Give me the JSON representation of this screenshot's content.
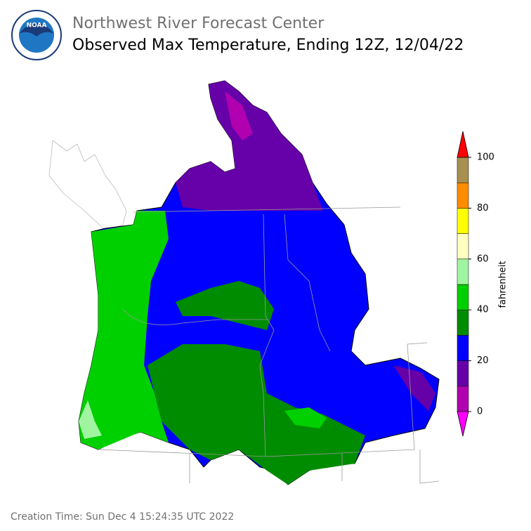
{
  "header": {
    "agency": "Northwest River Forecast Center",
    "title": "Observed Max Temperature, Ending 12Z, 12/04/22"
  },
  "logo": {
    "text": "NOAA"
  },
  "colorbar": {
    "label": "fahrenheit",
    "ticks": [
      0,
      20,
      40,
      60,
      80,
      100
    ],
    "levels": [
      0,
      10,
      20,
      30,
      40,
      50,
      60,
      70,
      80,
      90,
      100
    ],
    "colors": [
      "#b000b0",
      "#6600a8",
      "#0000ff",
      "#008c00",
      "#00d000",
      "#a0f5a0",
      "#ffffc0",
      "#ffff00",
      "#ff8c00",
      "#a89050"
    ],
    "under_color": "#ff00ff",
    "over_color": "#ff0000"
  },
  "footer": {
    "creation_time": "Creation Time: Sun Dec 4 15:24:35 UTC 2022"
  }
}
